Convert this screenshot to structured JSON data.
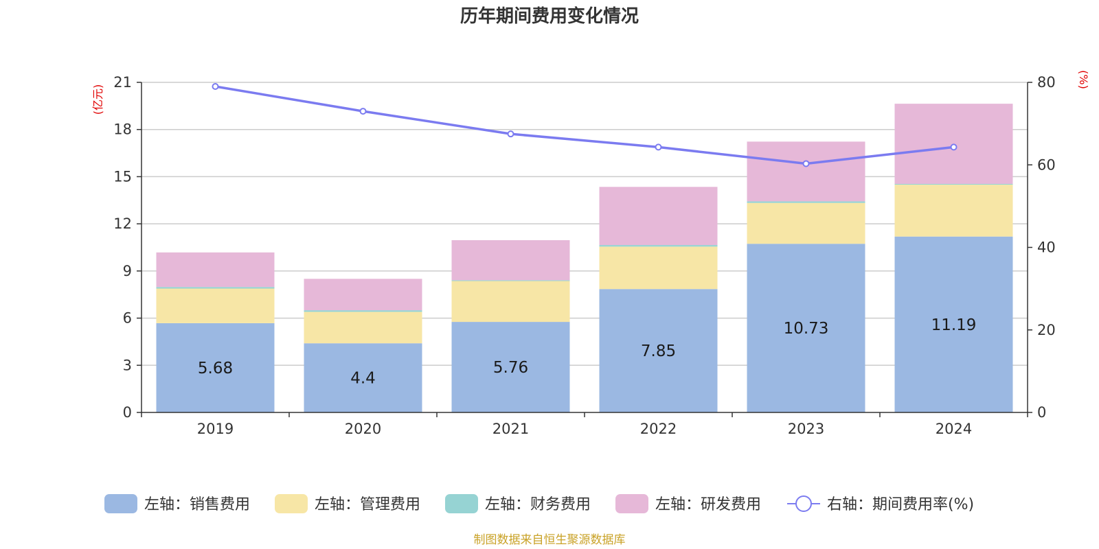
{
  "chart_data": {
    "type": "bar",
    "title": "历年期间费用变化情况",
    "categories": [
      "2019",
      "2020",
      "2021",
      "2022",
      "2023",
      "2024"
    ],
    "stacked": true,
    "left_axis": {
      "unit": "(亿元)",
      "ylim": [
        0,
        21
      ],
      "ticks": [
        "0",
        "3",
        "6",
        "9",
        "12",
        "15",
        "18",
        "21"
      ]
    },
    "right_axis": {
      "unit": "(%)",
      "ylim": [
        0,
        80
      ],
      "ticks": [
        "0",
        "20",
        "40",
        "60",
        "80"
      ]
    },
    "series": [
      {
        "name": "左轴：销售费用",
        "kind": "bar",
        "color": "#9bb8e2",
        "values": [
          5.68,
          4.4,
          5.76,
          7.85,
          10.73,
          11.19
        ],
        "show_labels": true
      },
      {
        "name": "左轴：管理费用",
        "kind": "bar",
        "color": "#f7e6a6",
        "values": [
          2.2,
          2.0,
          2.6,
          2.7,
          2.6,
          3.3
        ]
      },
      {
        "name": "左轴：财务费用",
        "kind": "bar",
        "color": "#96d3d3",
        "values": [
          0.1,
          0.1,
          0.05,
          0.1,
          0.1,
          0.05
        ]
      },
      {
        "name": "左轴：研发费用",
        "kind": "bar",
        "color": "#e6b8d8",
        "values": [
          2.2,
          2.0,
          2.55,
          3.7,
          3.8,
          5.1
        ]
      },
      {
        "name": "右轴：期间费用率(%)",
        "kind": "line",
        "axis": "right",
        "color": "#7b7bf0",
        "values": [
          79,
          73,
          67.5,
          64.3,
          60.3,
          64.3
        ]
      }
    ],
    "grid": true,
    "legend_position": "bottom"
  },
  "footer": "制图数据来自恒生聚源数据库"
}
